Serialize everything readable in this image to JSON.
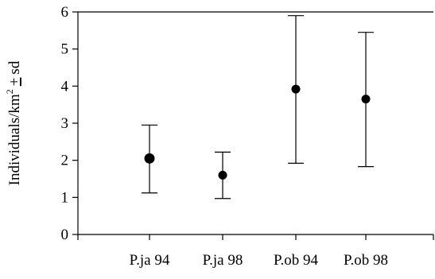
{
  "chart_data": {
    "type": "scatter",
    "title": "",
    "xlabel": "",
    "ylabel": {
      "main": "Individuals/km",
      "superscript": "2",
      "plus_minus": "+",
      "suffix": "sd"
    },
    "categories": [
      "P.ja 94",
      "P.ja 98",
      "P.ob 94",
      "P.ob 98"
    ],
    "series": [
      {
        "values": [
          2.05,
          1.6,
          3.92,
          3.65
        ],
        "sd_lower": [
          1.12,
          0.97,
          1.92,
          1.83
        ],
        "sd_upper": [
          2.95,
          2.22,
          5.9,
          5.45
        ]
      }
    ],
    "ylim": [
      0,
      6
    ],
    "yticks": [
      "0",
      "1",
      "2",
      "3",
      "4",
      "5",
      "6"
    ],
    "grid": false,
    "legend": "none",
    "colors": {
      "marker": "#000000",
      "axis": "#000000"
    }
  }
}
